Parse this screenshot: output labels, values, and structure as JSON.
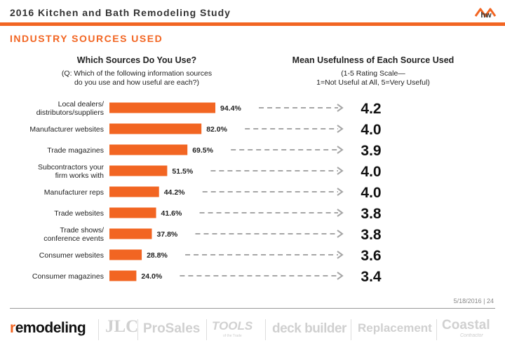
{
  "header": {
    "study_title": "2016 Kitchen and Bath Remodeling Study",
    "logo_text": "hw",
    "section_title": "INDUSTRY SOURCES USED"
  },
  "left_column": {
    "heading": "Which Sources Do You Use?",
    "subheading_lines": [
      "(Q: Which of the following information sources",
      "do you use and how useful are each?)"
    ]
  },
  "right_column": {
    "heading": "Mean Usefulness of Each Source Used",
    "subheading_lines": [
      "(1-5 Rating Scale—",
      "1=Not Useful at All, 5=Very Useful)"
    ]
  },
  "colors": {
    "accent": "#f26522",
    "arrow": "#a6a6a6",
    "text": "#222222"
  },
  "chart_data": {
    "type": "bar",
    "orientation": "horizontal",
    "categories": [
      [
        "Local dealers/",
        "distributors/suppliers"
      ],
      [
        "Manufacturer websites"
      ],
      [
        "Trade magazines"
      ],
      [
        "Subcontractors your",
        "firm works with"
      ],
      [
        "Manufacturer reps"
      ],
      [
        "Trade websites"
      ],
      [
        "Trade shows/",
        "conference events"
      ],
      [
        "Consumer websites"
      ],
      [
        "Consumer magazines"
      ]
    ],
    "series": [
      {
        "values": [
          94.4,
          82.0,
          69.5,
          51.5,
          44.2,
          41.6,
          37.8,
          28.8,
          24.0
        ],
        "value_labels": [
          "94.4%",
          "82.0%",
          "69.5%",
          "51.5%",
          "44.2%",
          "41.6%",
          "37.8%",
          "28.8%",
          "24.0%"
        ],
        "color": "#f26522"
      },
      {
        "values": [
          4.2,
          4.0,
          3.9,
          4.0,
          4.0,
          3.8,
          3.8,
          3.6,
          3.4
        ],
        "value_labels": [
          "4.2",
          "4.0",
          "3.9",
          "4.0",
          "4.0",
          "3.8",
          "3.8",
          "3.6",
          "3.4"
        ]
      }
    ],
    "xlim": [
      0,
      100
    ],
    "grid": false,
    "legend": "none"
  },
  "footer": {
    "date_page": "5/18/2016 | 24",
    "brands": {
      "remodeling_first": "r",
      "remodeling_rest": "emodeling",
      "jlc": "JLC",
      "prosales": "ProSales",
      "tools": "TOOLS",
      "tools_sub": "of the Trade",
      "deck": "deck builder",
      "replacement": "Replacement",
      "coastal": "Coastal",
      "coastal_sub": "Contractor"
    }
  }
}
